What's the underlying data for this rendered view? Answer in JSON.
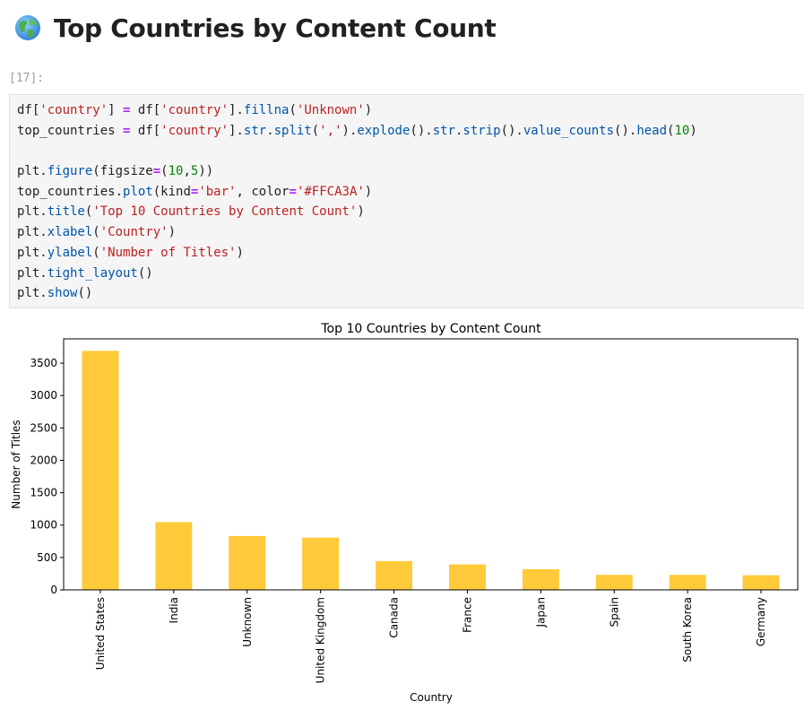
{
  "heading": {
    "icon": "globe-icon",
    "text": "Top Countries by Content Count"
  },
  "cell": {
    "prompt": "[17]:"
  },
  "code": {
    "lines": [
      "df['country'] = df['country'].fillna('Unknown')",
      "top_countries = df['country'].str.split(',').explode().str.strip().value_counts().head(10)",
      "",
      "plt.figure(figsize=(10,5))",
      "top_countries.plot(kind='bar', color='#FFCA3A')",
      "plt.title('Top 10 Countries by Content Count')",
      "plt.xlabel('Country')",
      "plt.ylabel('Number of Titles')",
      "plt.tight_layout()",
      "plt.show()"
    ]
  },
  "chart_data": {
    "type": "bar",
    "title": "Top 10 Countries by Content Count",
    "xlabel": "Country",
    "ylabel": "Number of Titles",
    "categories": [
      "United States",
      "India",
      "Unknown",
      "United Kingdom",
      "Canada",
      "France",
      "Japan",
      "Spain",
      "South Korea",
      "Germany"
    ],
    "values": [
      3690,
      1046,
      831,
      806,
      445,
      393,
      318,
      232,
      231,
      226
    ],
    "yticks": [
      0,
      500,
      1000,
      1500,
      2000,
      2500,
      3000,
      3500
    ],
    "ylim": [
      0,
      3875
    ],
    "bar_color": "#FFCA3A",
    "grid": false,
    "legend": "none"
  }
}
